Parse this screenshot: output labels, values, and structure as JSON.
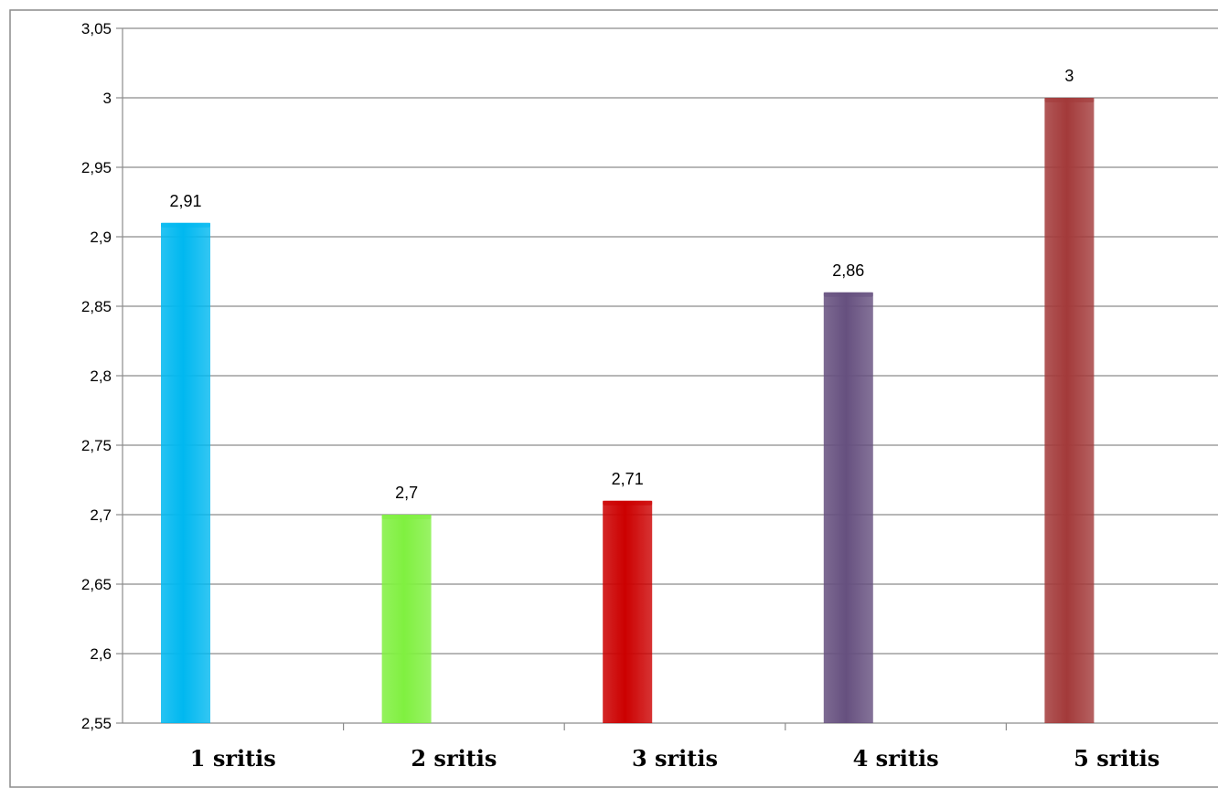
{
  "chart_data": {
    "type": "bar",
    "categories": [
      "1 sritis",
      "2 sritis",
      "3 sritis",
      "4 sritis",
      "5 sritis"
    ],
    "values": [
      2.91,
      2.7,
      2.71,
      2.86,
      3
    ],
    "value_labels": [
      "2,91",
      "2,7",
      "2,71",
      "2,86",
      "3"
    ],
    "colors": [
      "#00B8F0",
      "#80F040",
      "#CC0000",
      "#66507F",
      "#A33A3A"
    ],
    "ylim": [
      2.55,
      3.05
    ],
    "yticks": [
      2.55,
      2.6,
      2.65,
      2.7,
      2.75,
      2.8,
      2.85,
      2.9,
      2.95,
      3,
      3.05
    ],
    "ytick_labels": [
      "2,55",
      "2,6",
      "2,65",
      "2,7",
      "2,75",
      "2,8",
      "2,85",
      "2,9",
      "2,95",
      "3",
      "3,05"
    ],
    "title": "",
    "xlabel": "",
    "ylabel": "",
    "grid": true,
    "legend": "none"
  }
}
